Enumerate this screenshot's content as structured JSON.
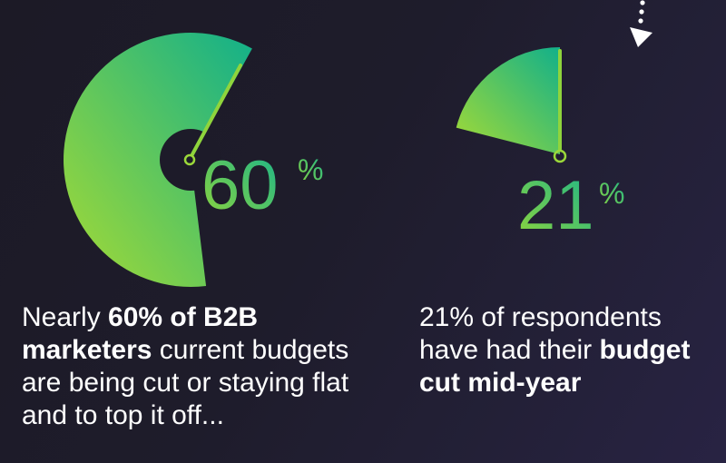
{
  "chart_data": [
    {
      "type": "pie",
      "value": 60,
      "label_number": "60",
      "label_suffix": "%",
      "caption": {
        "pre": "Nearly ",
        "bold": "60% of B2B marketers",
        "post": " current budgets are being cut or staying flat and to top it off..."
      }
    },
    {
      "type": "pie",
      "value": 21,
      "label_number": "21",
      "label_suffix": "%",
      "caption": {
        "pre": "21% of respondents have had their ",
        "bold": "budget cut mid-year",
        "post": ""
      }
    }
  ],
  "colors": {
    "gradient_start": "#a6db34",
    "gradient_end": "#12b08a",
    "text": "#ffffff",
    "background": "#1e1c2b"
  },
  "icons": {
    "arrow": "dotted-down-arrow-icon"
  }
}
